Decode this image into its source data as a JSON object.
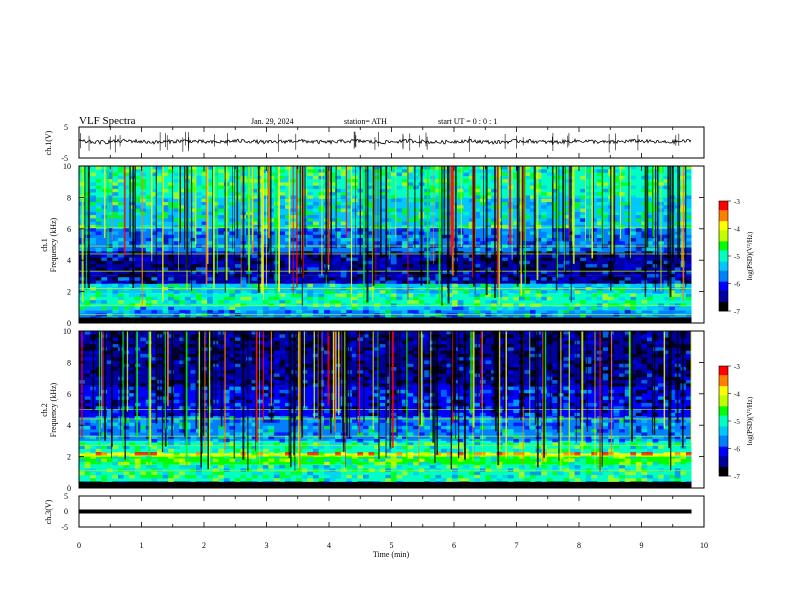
{
  "header": {
    "title": "VLF  Spectra",
    "date": "Jan.  29,  2024",
    "station": "station=  ATH",
    "start": "start   UT  =    0  : 0   : 1"
  },
  "chart_data": [
    {
      "type": "line",
      "panel": "ch1_waveform",
      "ylabel": "ch.1(V)",
      "ylim": [
        -5,
        5
      ],
      "yticks": [
        "5",
        "-5"
      ],
      "x_range_min": [
        0,
        9.8
      ],
      "baseline_v": 0.3,
      "amplitude_v": 0.6
    },
    {
      "type": "heatmap",
      "panel": "ch1_spectrogram",
      "ylabel": "ch.1\nFrequency  (kHz)",
      "ylim": [
        0,
        10
      ],
      "yticks": [
        "0",
        "2",
        "4",
        "6",
        "8",
        "10"
      ],
      "x_range_min": [
        0,
        9.8
      ],
      "colorbar": {
        "label": "log(PSD)(V²/Hz)",
        "range": [
          -7,
          -3
        ],
        "ticks": [
          "-3",
          "-4",
          "-5",
          "-6",
          "-7"
        ]
      },
      "bands_khz": [
        {
          "from": 0.0,
          "to": 0.3,
          "level": -7.0
        },
        {
          "from": 0.3,
          "to": 0.8,
          "level": -5.6
        },
        {
          "from": 0.8,
          "to": 1.1,
          "level": -5.3
        },
        {
          "from": 1.1,
          "to": 1.9,
          "level": -5.0
        },
        {
          "from": 1.9,
          "to": 2.5,
          "level": -5.2
        },
        {
          "from": 2.5,
          "to": 3.0,
          "level": -6.3
        },
        {
          "from": 3.0,
          "to": 4.5,
          "level": -6.5
        },
        {
          "from": 4.5,
          "to": 6.0,
          "level": -5.8
        },
        {
          "from": 6.0,
          "to": 8.0,
          "level": -5.2
        },
        {
          "from": 8.0,
          "to": 10.0,
          "level": -5.0
        }
      ],
      "lines_khz": [
        0.55,
        1.1,
        2.2,
        3.3,
        4.4,
        4.9,
        6.1
      ]
    },
    {
      "type": "heatmap",
      "panel": "ch2_spectrogram",
      "ylabel": "ch.2\nFrequency  (kHz)",
      "ylim": [
        0,
        10
      ],
      "yticks": [
        "0",
        "2",
        "4",
        "6",
        "8",
        "10"
      ],
      "x_range_min": [
        0,
        9.8
      ],
      "colorbar": {
        "label": "log(PSD)(V²/Hz)",
        "range": [
          -7,
          -3
        ],
        "ticks": [
          "-3",
          "-4",
          "-5",
          "-6",
          "-7"
        ]
      },
      "bands_khz": [
        {
          "from": 0.0,
          "to": 0.4,
          "level": -7.0
        },
        {
          "from": 0.4,
          "to": 1.5,
          "level": -5.0
        },
        {
          "from": 1.5,
          "to": 2.0,
          "level": -4.8
        },
        {
          "from": 2.0,
          "to": 2.2,
          "level": -3.9
        },
        {
          "from": 2.2,
          "to": 3.0,
          "level": -5.0
        },
        {
          "from": 3.0,
          "to": 4.5,
          "level": -5.6
        },
        {
          "from": 4.5,
          "to": 6.5,
          "level": -6.2
        },
        {
          "from": 6.5,
          "to": 10.0,
          "level": -6.6
        }
      ],
      "lines_khz": [
        1.1,
        2.05,
        2.7,
        3.3,
        4.4,
        5.0
      ]
    },
    {
      "type": "line",
      "panel": "ch3_waveform",
      "ylabel": "ch.3(V)",
      "ylim": [
        -5,
        5
      ],
      "yticks": [
        "5",
        "0",
        "-5"
      ],
      "x_range_min": [
        0,
        9.8
      ],
      "baseline_v": 0.0
    }
  ],
  "xaxis": {
    "label": "Time  (min)",
    "range": [
      0,
      10
    ],
    "ticks": [
      "0",
      "1",
      "2",
      "3",
      "4",
      "5",
      "6",
      "7",
      "8",
      "9",
      "10"
    ]
  },
  "colors": {
    "colormap": [
      "#000000",
      "#0000a0",
      "#0000ff",
      "#0080ff",
      "#00c8ff",
      "#00ffc0",
      "#00ff00",
      "#c0ff00",
      "#ffff00",
      "#ff8000",
      "#ff0000",
      "#ffffff"
    ]
  }
}
